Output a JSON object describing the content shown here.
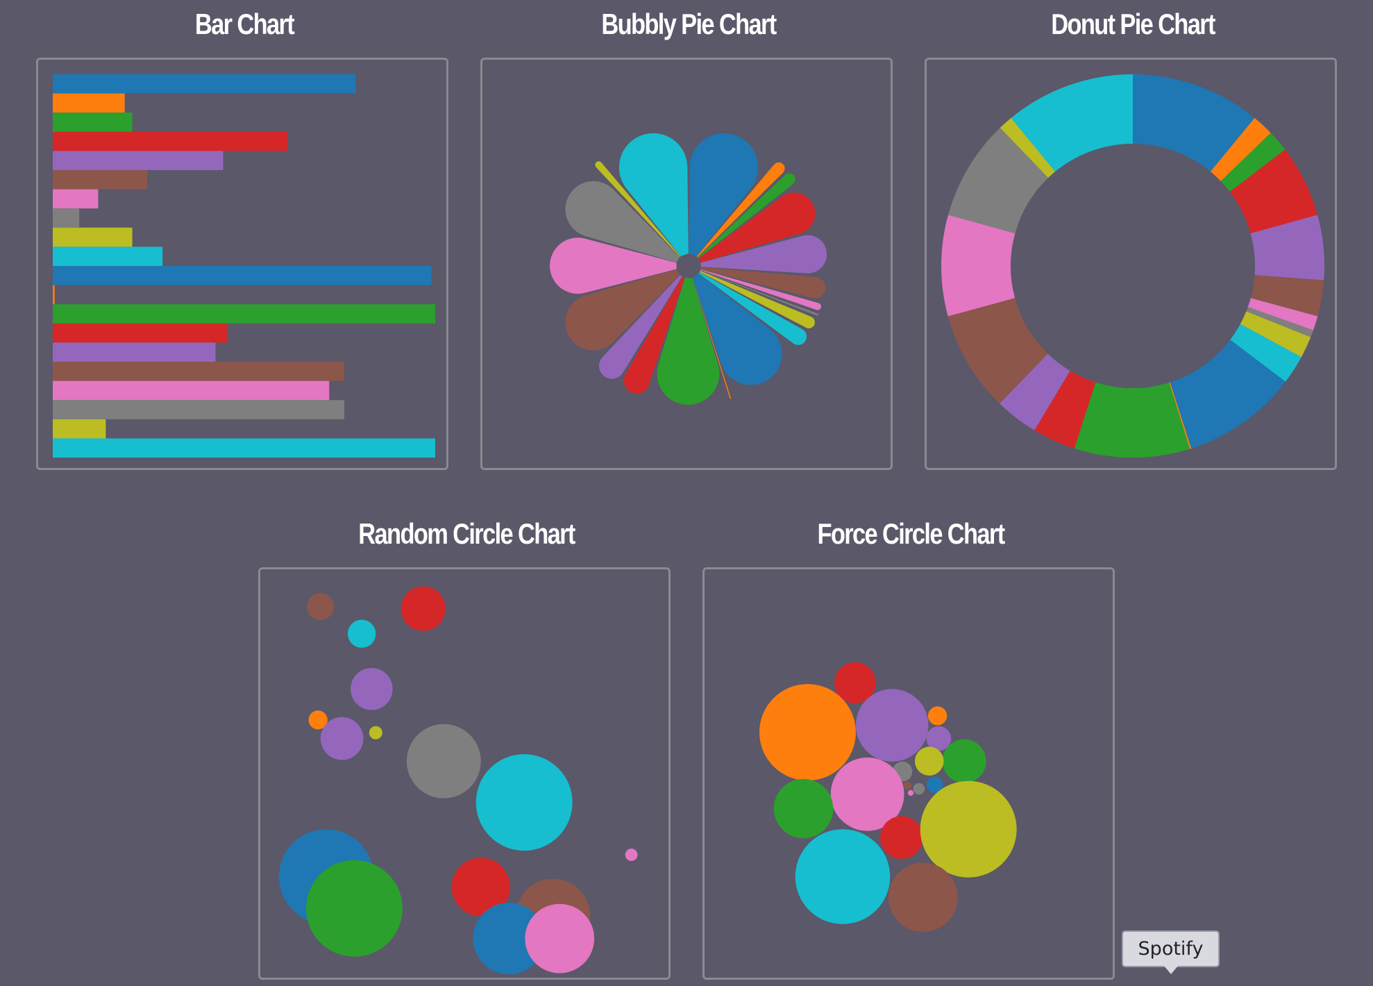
{
  "titles": {
    "bar": "Bar Chart",
    "bubbly": "Bubbly Pie Chart",
    "donut": "Donut Pie Chart",
    "random": "Random Circle Chart",
    "force": "Force Circle Chart"
  },
  "tooltip": {
    "label": "Spotify"
  },
  "palette": [
    "#1f77b4",
    "#ff7f0e",
    "#2ca02c",
    "#d62728",
    "#9467bd",
    "#8c564b",
    "#e377c2",
    "#7f7f7f",
    "#bcbd22",
    "#17becf"
  ],
  "chart_data": [
    {
      "type": "bar",
      "orientation": "horizontal",
      "values": [
        80,
        19,
        21,
        62,
        45,
        25,
        12,
        7,
        21,
        29,
        100,
        0.5,
        101,
        46,
        43,
        77,
        73,
        77,
        14,
        101
      ]
    },
    {
      "type": "pie",
      "variant": "bubbly",
      "values": [
        9,
        1.5,
        1.5,
        5,
        4.5,
        2.5,
        1,
        0.5,
        1.5,
        2,
        8,
        0.1,
        8,
        3,
        3,
        7,
        7,
        7,
        1,
        9
      ]
    },
    {
      "type": "pie",
      "variant": "donut",
      "values": [
        9,
        1.5,
        1.5,
        5,
        4.5,
        2.5,
        1,
        0.5,
        1.5,
        2,
        8,
        0.1,
        8,
        3,
        3,
        7,
        7,
        7,
        1,
        9
      ]
    },
    {
      "type": "scatter",
      "variant": "random-circles",
      "points": [
        {
          "c": 5,
          "x": 0.146,
          "y": 0.09,
          "r": 0.033
        },
        {
          "c": 3,
          "x": 0.395,
          "y": 0.095,
          "r": 0.054
        },
        {
          "c": 9,
          "x": 0.246,
          "y": 0.156,
          "r": 0.034
        },
        {
          "c": 4,
          "x": 0.27,
          "y": 0.29,
          "r": 0.051
        },
        {
          "c": 1,
          "x": 0.14,
          "y": 0.365,
          "r": 0.023
        },
        {
          "c": 4,
          "x": 0.198,
          "y": 0.41,
          "r": 0.052
        },
        {
          "c": 8,
          "x": 0.28,
          "y": 0.396,
          "r": 0.016
        },
        {
          "c": 7,
          "x": 0.445,
          "y": 0.465,
          "r": 0.09
        },
        {
          "c": 9,
          "x": 0.64,
          "y": 0.565,
          "r": 0.117
        },
        {
          "c": 6,
          "x": 0.9,
          "y": 0.692,
          "r": 0.015
        },
        {
          "c": 0,
          "x": 0.16,
          "y": 0.745,
          "r": 0.115
        },
        {
          "c": 2,
          "x": 0.228,
          "y": 0.822,
          "r": 0.117
        },
        {
          "c": 3,
          "x": 0.535,
          "y": 0.77,
          "r": 0.071
        },
        {
          "c": 5,
          "x": 0.71,
          "y": 0.84,
          "r": 0.09
        },
        {
          "c": 0,
          "x": 0.603,
          "y": 0.895,
          "r": 0.087
        },
        {
          "c": 6,
          "x": 0.726,
          "y": 0.895,
          "r": 0.084
        }
      ]
    },
    {
      "type": "scatter",
      "variant": "force-circles",
      "points": [
        {
          "c": 3,
          "x": 0.365,
          "y": 0.275,
          "r": 0.05
        },
        {
          "c": 1,
          "x": 0.25,
          "y": 0.395,
          "r": 0.117
        },
        {
          "c": 4,
          "x": 0.455,
          "y": 0.378,
          "r": 0.088
        },
        {
          "c": 1,
          "x": 0.565,
          "y": 0.355,
          "r": 0.023
        },
        {
          "c": 4,
          "x": 0.568,
          "y": 0.41,
          "r": 0.03
        },
        {
          "c": 2,
          "x": 0.63,
          "y": 0.465,
          "r": 0.053
        },
        {
          "c": 8,
          "x": 0.545,
          "y": 0.465,
          "r": 0.035
        },
        {
          "c": 7,
          "x": 0.48,
          "y": 0.49,
          "r": 0.024
        },
        {
          "c": 0,
          "x": 0.558,
          "y": 0.522,
          "r": 0.02
        },
        {
          "c": 7,
          "x": 0.52,
          "y": 0.532,
          "r": 0.014
        },
        {
          "c": 5,
          "x": 0.492,
          "y": 0.524,
          "r": 0.01
        },
        {
          "c": 6,
          "x": 0.5,
          "y": 0.542,
          "r": 0.007
        },
        {
          "c": 6,
          "x": 0.395,
          "y": 0.545,
          "r": 0.089
        },
        {
          "c": 2,
          "x": 0.24,
          "y": 0.58,
          "r": 0.072
        },
        {
          "c": 3,
          "x": 0.478,
          "y": 0.65,
          "r": 0.052
        },
        {
          "c": 8,
          "x": 0.64,
          "y": 0.63,
          "r": 0.117
        },
        {
          "c": 9,
          "x": 0.335,
          "y": 0.745,
          "r": 0.115
        },
        {
          "c": 5,
          "x": 0.53,
          "y": 0.795,
          "r": 0.084
        }
      ]
    }
  ]
}
